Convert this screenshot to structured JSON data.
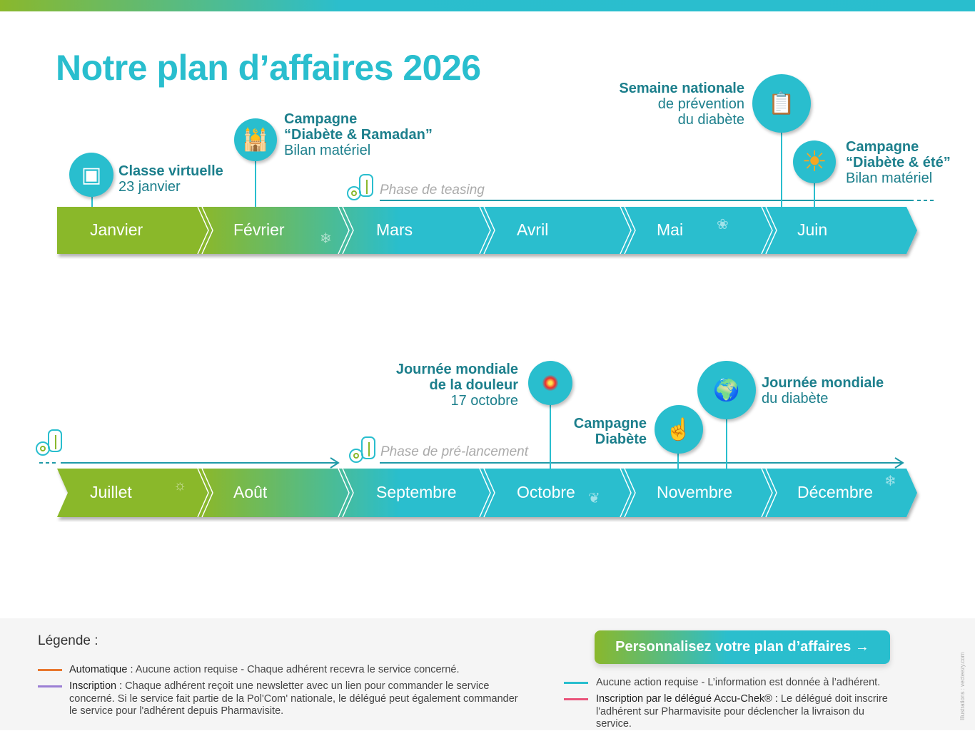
{
  "title": "Notre plan d’affaires 2026",
  "colors": {
    "teal": "#29bece",
    "green": "#8ab82c",
    "dark_teal": "#1c7f8c",
    "automatique": "#e8772e",
    "inscription": "#9b7fd4",
    "aucune_action": "#29bece",
    "delegue": "#e9537a"
  },
  "row1": {
    "months": [
      "Janvier",
      "Février",
      "Mars",
      "Avril",
      "Mai",
      "Juin"
    ],
    "phase": "Phase de teasing"
  },
  "row2": {
    "months": [
      "Juillet",
      "Août",
      "Septembre",
      "Octobre",
      "Novembre",
      "Décembre"
    ],
    "phase": "Phase de pré-lancement"
  },
  "events": {
    "classe": {
      "l1": "Classe virtuelle",
      "l2": "23 janvier",
      "icon": "video-call-icon"
    },
    "ramadan": {
      "l1": "Campagne",
      "l2": "“Diabète & Ramadan”",
      "l3": "Bilan matériel",
      "icon": "mosque-icon"
    },
    "semaine": {
      "l1": "Semaine nationale",
      "l2": "de prévention",
      "l3": "du diabète",
      "icon": "glucometer-icon"
    },
    "ete": {
      "l1": "Campagne",
      "l2": "“Diabète & été”",
      "l3": "Bilan matériel",
      "icon": "sun-icon"
    },
    "douleur": {
      "l1": "Journée mondiale",
      "l2": "de la douleur",
      "l3": "17 octobre",
      "icon": "pain-target-icon"
    },
    "campagne": {
      "l1": "Campagne",
      "l2": "Diabète",
      "icon": "finger-prick-icon"
    },
    "mondiale": {
      "l1": "Journée mondiale",
      "l2": "du diabète",
      "icon": "globe-icon"
    }
  },
  "legend": {
    "title": "Légende :",
    "automatique_label": "Automatique :",
    "automatique_text": " Aucune action requise - Chaque adhérent recevra le service concerné.",
    "inscription_label": "Inscription :",
    "inscription_text": " Chaque adhérent reçoit une newsletter avec un lien pour commander le service concerné. Si le service fait partie de la Pol'Com' nationale, le délégué peut également commander le service pour l'adhérent depuis Pharmavisite.",
    "aucune_text": "Aucune action requise - L’information est donnée à l’adhérent.",
    "delegue_label": "Inscription par le délégué Accu-Chek® :",
    "delegue_text": " Le délégué doit inscrire l'adhérent sur Pharmavisite pour déclencher la livraison du service."
  },
  "cta": "Personnalisez votre plan d’affaires →",
  "credit": "Illustrations : vecteezy.com"
}
